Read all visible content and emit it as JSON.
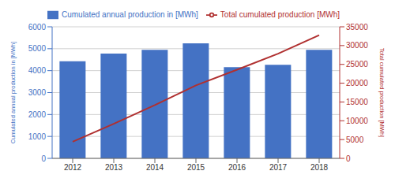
{
  "chart_data": {
    "type": "bar",
    "categories": [
      "2012",
      "2013",
      "2014",
      "2015",
      "2016",
      "2017",
      "2018"
    ],
    "series": [
      {
        "name": "Cumulated annual production in [MWh]",
        "type": "bar",
        "color": "#4472c4",
        "values": [
          4430,
          4780,
          4950,
          5250,
          4160,
          4270,
          4950
        ]
      },
      {
        "name": "Total cumulated production [MWh]",
        "type": "line",
        "color": "#b03030",
        "axis": "y2",
        "values": [
          4430,
          9210,
          14160,
          19410,
          23570,
          27840,
          32790
        ]
      }
    ],
    "ylabel": "Cumulated annual production in [MWh]",
    "y2label": "Total cumulated production [MWh]",
    "ylim": [
      0,
      6000
    ],
    "yticks": [
      0,
      1000,
      2000,
      3000,
      4000,
      5000,
      6000
    ],
    "y2lim": [
      0,
      35000
    ],
    "y2ticks": [
      0,
      5000,
      10000,
      15000,
      20000,
      25000,
      30000,
      35000
    ],
    "grid": true,
    "legend": "top"
  }
}
